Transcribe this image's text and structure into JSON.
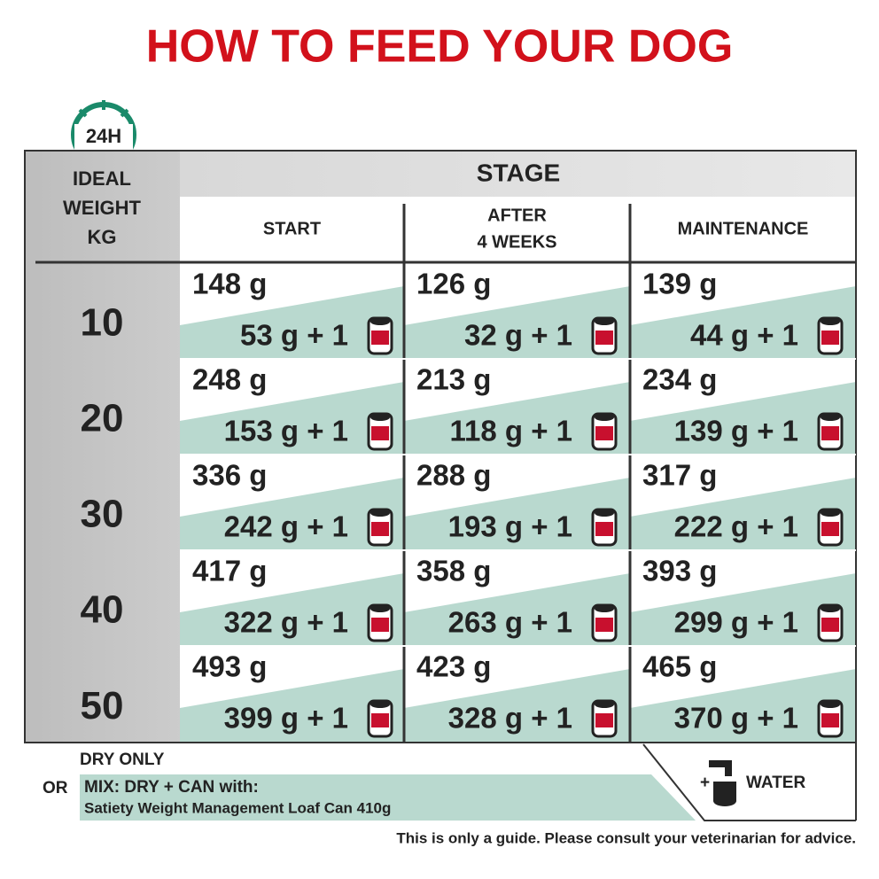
{
  "title": "HOW TO FEED YOUR DOG",
  "clock_label": "24H",
  "table": {
    "weight_header": [
      "IDEAL",
      "WEIGHT",
      "KG"
    ],
    "stage_header": "STAGE",
    "columns": [
      [
        "START"
      ],
      [
        "AFTER",
        "4 WEEKS"
      ],
      [
        "MAINTENANCE"
      ]
    ],
    "rows": [
      {
        "weight": 10,
        "cells": [
          {
            "dry": "148 g",
            "mix": "53 g + 1"
          },
          {
            "dry": "126 g",
            "mix": "32 g + 1"
          },
          {
            "dry": "139 g",
            "mix": "44 g + 1"
          }
        ]
      },
      {
        "weight": 20,
        "cells": [
          {
            "dry": "248 g",
            "mix": "153 g + 1"
          },
          {
            "dry": "213 g",
            "mix": "118 g + 1"
          },
          {
            "dry": "234 g",
            "mix": "139 g + 1"
          }
        ]
      },
      {
        "weight": 30,
        "cells": [
          {
            "dry": "336 g",
            "mix": "242 g + 1"
          },
          {
            "dry": "288 g",
            "mix": "193 g + 1"
          },
          {
            "dry": "317 g",
            "mix": "222 g + 1"
          }
        ]
      },
      {
        "weight": 40,
        "cells": [
          {
            "dry": "417 g",
            "mix": "322 g + 1"
          },
          {
            "dry": "358 g",
            "mix": "263 g + 1"
          },
          {
            "dry": "393 g",
            "mix": "299 g + 1"
          }
        ]
      },
      {
        "weight": 50,
        "cells": [
          {
            "dry": "493 g",
            "mix": "399 g + 1"
          },
          {
            "dry": "423 g",
            "mix": "328 g + 1"
          },
          {
            "dry": "465 g",
            "mix": "370 g + 1"
          }
        ]
      }
    ]
  },
  "legend": {
    "dry_only": "DRY ONLY",
    "or": "OR",
    "mix": "MIX: DRY + CAN with:",
    "product": "Satiety Weight Management Loaf Can 410g",
    "plus": "+",
    "water": "WATER"
  },
  "footnote": "This is only a guide. Please consult your veterinarian for advice."
}
